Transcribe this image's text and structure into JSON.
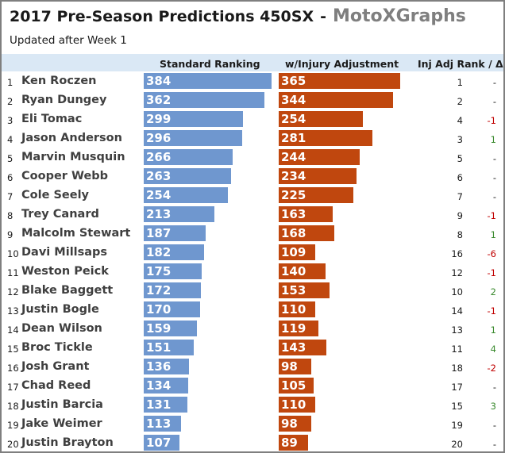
{
  "header": {
    "title": "2017 Pre-Season Predictions 450SX",
    "separator": "-",
    "brand": "MotoXGraphs",
    "subtitle": "Updated after Week 1",
    "col_standard": "Standard Ranking",
    "col_injury": "w/Injury Adjustment",
    "col_rank": "Inj Adj Rank / Δ"
  },
  "colors": {
    "standard_bar": "#6f97cf",
    "injury_bar": "#c0470e",
    "delta_negative": "#c00000",
    "delta_positive": "#3a8a2e",
    "header_band": "#dae8f5"
  },
  "chart_data": {
    "type": "bar",
    "categories": [
      "Ken Roczen",
      "Ryan Dungey",
      "Eli Tomac",
      "Jason Anderson",
      "Marvin Musquin",
      "Cooper Webb",
      "Cole Seely",
      "Trey Canard",
      "Malcolm Stewart",
      "Davi Millsaps",
      "Weston Peick",
      "Blake Baggett",
      "Justin Bogle",
      "Dean Wilson",
      "Broc Tickle",
      "Josh Grant",
      "Chad Reed",
      "Justin Barcia",
      "Jake Weimer",
      "Justin Brayton"
    ],
    "positions": [
      "1",
      "2",
      "3",
      "4",
      "5",
      "6",
      "7",
      "8",
      "9",
      "10",
      "11",
      "12",
      "13",
      "14",
      "15",
      "16",
      "17",
      "18",
      "19",
      "20"
    ],
    "series": [
      {
        "name": "Standard Ranking",
        "values": [
          384,
          362,
          299,
          296,
          266,
          263,
          254,
          213,
          187,
          182,
          175,
          172,
          170,
          159,
          151,
          136,
          134,
          131,
          113,
          107
        ]
      },
      {
        "name": "w/Injury Adjustment",
        "values": [
          365,
          344,
          254,
          281,
          244,
          234,
          225,
          163,
          168,
          109,
          140,
          153,
          110,
          119,
          143,
          98,
          105,
          110,
          98,
          89
        ]
      }
    ],
    "inj_adj_rank": [
      "1",
      "2",
      "4",
      "3",
      "5",
      "6",
      "7",
      "9",
      "8",
      "16",
      "12",
      "10",
      "14",
      "13",
      "11",
      "18",
      "17",
      "15",
      "19",
      "20"
    ],
    "rank_change": [
      "-",
      "-",
      "-1",
      "1",
      "-",
      "-",
      "-",
      "-1",
      "1",
      "-6",
      "-1",
      "2",
      "-1",
      "1",
      "4",
      "-2",
      "-",
      "3",
      "-",
      "-"
    ],
    "scale_max": 384,
    "legend": "none",
    "grid": false
  }
}
